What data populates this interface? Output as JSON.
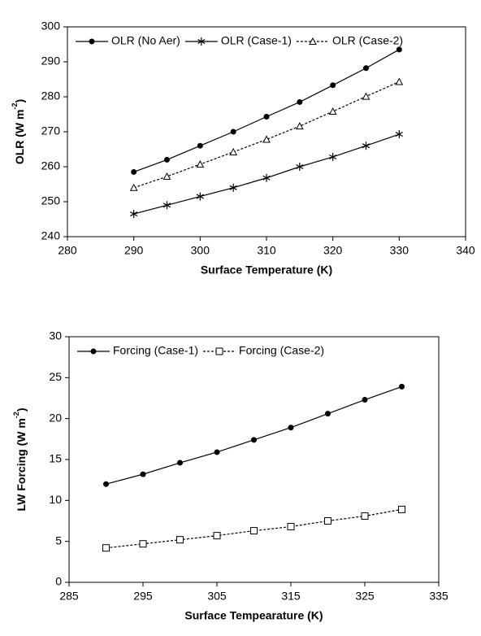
{
  "chart_data": [
    {
      "type": "line",
      "xlabel": "Surface Temperature (K)",
      "ylabel": "OLR (W m",
      "ylabel_superscript": "-2",
      "ylabel_end": ")",
      "x": [
        290,
        295,
        300,
        305,
        310,
        315,
        320,
        325,
        330
      ],
      "series": [
        {
          "name": "OLR (No Aer)",
          "color": "#000000",
          "marker": "circle",
          "dash": false,
          "values": [
            258.5,
            262,
            266,
            270,
            274.3,
            278.5,
            283.3,
            288.2,
            293.5
          ]
        },
        {
          "name": "OLR (Case-1)",
          "color": "#000000",
          "marker": "star",
          "dash": false,
          "values": [
            246.5,
            249,
            251.5,
            254,
            256.8,
            260,
            262.8,
            266,
            269.3
          ]
        },
        {
          "name": "OLR (Case-2)",
          "color": "#000000",
          "marker": "triangle",
          "dash": true,
          "values": [
            254,
            257.2,
            260.7,
            264.2,
            267.8,
            271.6,
            275.8,
            280.1,
            284.3
          ]
        }
      ],
      "xlim": [
        280,
        340
      ],
      "xticks": [
        280,
        290,
        300,
        310,
        320,
        330,
        340
      ],
      "ylim": [
        240,
        300
      ],
      "yticks": [
        240,
        250,
        260,
        270,
        280,
        290,
        300
      ],
      "grid": false,
      "legend": "top"
    },
    {
      "type": "line",
      "xlabel": "Surface Tempearature (K)",
      "ylabel": "LW Forcing (W m",
      "ylabel_superscript": "-2",
      "ylabel_end": ")",
      "x": [
        290,
        295,
        300,
        305,
        310,
        315,
        320,
        325,
        330
      ],
      "series": [
        {
          "name": "Forcing (Case-1)",
          "color": "#000000",
          "marker": "circle",
          "dash": false,
          "values": [
            12,
            13.2,
            14.6,
            15.9,
            17.4,
            18.9,
            20.6,
            22.3,
            23.9
          ]
        },
        {
          "name": "Forcing (Case-2)",
          "color": "#000000",
          "marker": "square",
          "dash": true,
          "values": [
            4.2,
            4.7,
            5.2,
            5.7,
            6.3,
            6.8,
            7.5,
            8.1,
            8.9
          ]
        }
      ],
      "xlim": [
        285,
        335
      ],
      "xticks": [
        285,
        295,
        305,
        315,
        325,
        335
      ],
      "ylim": [
        0,
        30
      ],
      "yticks": [
        0,
        5,
        10,
        15,
        20,
        25,
        30
      ],
      "grid": false,
      "legend": "top"
    }
  ]
}
